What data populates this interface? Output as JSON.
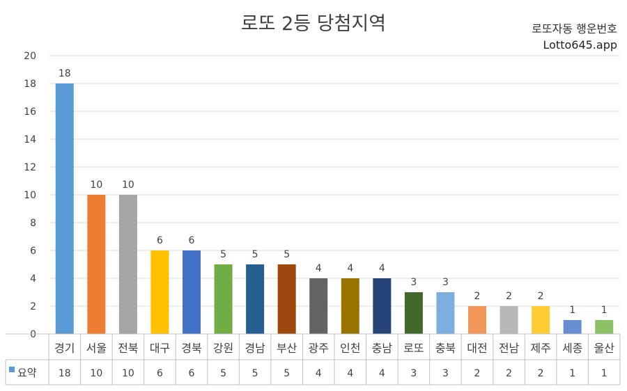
{
  "title": "로또 2등 당첨지역",
  "subtitle_line1": "로또자동 행운번호",
  "subtitle_line2": "Lotto645.app",
  "chart_data": {
    "type": "bar",
    "title": "로또 2등 당첨지역",
    "categories": [
      "경기",
      "서울",
      "전북",
      "대구",
      "경북",
      "강원",
      "경남",
      "부산",
      "광주",
      "인천",
      "충남",
      "로또",
      "충북",
      "대전",
      "전남",
      "제주",
      "세종",
      "울산"
    ],
    "series": [
      {
        "name": "요약",
        "values": [
          18,
          10,
          10,
          6,
          6,
          5,
          5,
          5,
          4,
          4,
          4,
          3,
          3,
          2,
          2,
          2,
          1,
          1
        ]
      }
    ],
    "bar_colors": [
      "#5b9bd5",
      "#ed7d31",
      "#a5a5a5",
      "#ffc000",
      "#4472c4",
      "#70ad47",
      "#255e91",
      "#9e480e",
      "#636363",
      "#997300",
      "#264478",
      "#43682b",
      "#7cafdd",
      "#f1975a",
      "#b7b7b7",
      "#ffcd33",
      "#698ed0",
      "#8cc168"
    ],
    "ylim": [
      0,
      20
    ],
    "yticks": [
      0,
      2,
      4,
      6,
      8,
      10,
      12,
      14,
      16,
      18,
      20
    ],
    "grid": true,
    "data_labels": true,
    "data_table": true,
    "legend": "data-table"
  }
}
